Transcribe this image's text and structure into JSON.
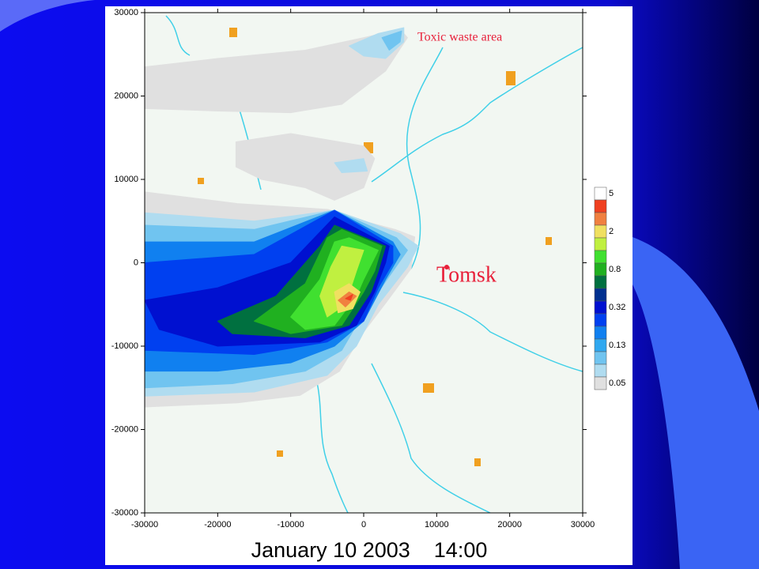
{
  "chart_data": {
    "type": "contour",
    "title": "January 10 2003    14:00",
    "annotations": [
      "Toxic waste area",
      "Tomsk"
    ],
    "xlim": [
      -30000,
      30000
    ],
    "ylim": [
      -30000,
      30000
    ],
    "xticks": [
      -30000,
      -20000,
      -10000,
      0,
      10000,
      20000,
      30000
    ],
    "yticks": [
      -30000,
      -20000,
      -10000,
      0,
      10000,
      20000,
      30000
    ],
    "colorbar": {
      "colors": [
        "#ffffff",
        "#f04020",
        "#f08040",
        "#f0e060",
        "#c0f040",
        "#40e030",
        "#20b020",
        "#007040",
        "#003090",
        "#0010d0",
        "#0040f0",
        "#1080f0",
        "#30a8f0",
        "#70c4f0",
        "#b0dcf0",
        "#e0e0e0"
      ],
      "labels": [
        5,
        null,
        null,
        2,
        null,
        null,
        0.8,
        null,
        null,
        0.32,
        null,
        null,
        0.13,
        null,
        null,
        0.05
      ]
    },
    "contours": [
      {
        "color": "#e0e0e0",
        "x": [
          -30000,
          -20000,
          -8000,
          0,
          5000,
          6000,
          3000,
          -3000,
          -10000,
          -20000,
          -30000
        ],
        "y": [
          23500,
          24500,
          25500,
          27000,
          28000,
          27000,
          23000,
          19000,
          18000,
          18200,
          18500
        ]
      },
      {
        "color": "#b0dcf0",
        "x": [
          -2000,
          2000,
          5500,
          5500,
          3000,
          0
        ],
        "y": [
          26000,
          27500,
          28200,
          26500,
          24500,
          24800
        ]
      },
      {
        "color": "#70c4f0",
        "x": [
          2500,
          5200,
          5000,
          3500
        ],
        "y": [
          27000,
          27800,
          26500,
          25500
        ]
      },
      {
        "color": "#e0e0e0",
        "x": [
          -17500,
          -10000,
          0,
          1500,
          0,
          -4000,
          -8000,
          -14000,
          -17500
        ],
        "y": [
          14500,
          15500,
          14000,
          12500,
          9000,
          7500,
          9000,
          10000,
          11500
        ]
      },
      {
        "color": "#b0dcf0",
        "x": [
          -4000,
          0,
          500,
          -3000
        ],
        "y": [
          12000,
          12500,
          11000,
          10800
        ]
      },
      {
        "color": "#e0e0e0",
        "x": [
          -30000,
          -17300,
          -4900,
          0,
          4300,
          7000,
          6500,
          3300,
          0,
          -3300,
          -8700,
          -17300,
          -30000
        ],
        "y": [
          8500,
          7100,
          6400,
          5000,
          4000,
          3100,
          -700,
          -4500,
          -8300,
          -13000,
          -15900,
          -16800,
          -17300
        ]
      },
      {
        "color": "#b0dcf0",
        "x": [
          -30000,
          -15000,
          -4000,
          5000,
          7500,
          6000,
          2000,
          -1000,
          -5000,
          -15000,
          -30000
        ],
        "y": [
          6000,
          5000,
          6300,
          3500,
          2000,
          -500,
          -5000,
          -10000,
          -13500,
          -15500,
          -16000
        ]
      },
      {
        "color": "#70c4f0",
        "x": [
          -30000,
          -15000,
          -4000,
          4500,
          6000,
          4000,
          0,
          -3000,
          -8000,
          -18000,
          -30000
        ],
        "y": [
          4500,
          4000,
          6300,
          3000,
          1500,
          -1000,
          -6000,
          -10500,
          -13000,
          -14500,
          -15000
        ]
      },
      {
        "color": "#1080f0",
        "x": [
          -30000,
          -15000,
          -4000,
          4000,
          5000,
          3000,
          0,
          -4000,
          -10000,
          -20000,
          -30000
        ],
        "y": [
          2500,
          2500,
          6300,
          2500,
          1000,
          -2000,
          -7000,
          -10000,
          -12000,
          -13000,
          -13000
        ]
      },
      {
        "color": "#0040f0",
        "x": [
          -30000,
          -15000,
          -4000,
          4000,
          4000,
          2000,
          0,
          -5000,
          -15000,
          -30000
        ],
        "y": [
          0,
          1000,
          6300,
          2000,
          0,
          -3000,
          -7000,
          -9500,
          -11000,
          -10500
        ]
      },
      {
        "color": "#0010d0",
        "x": [
          -30000,
          -20000,
          -10000,
          -4000,
          3500,
          3000,
          1500,
          -1000,
          -6000,
          -20000,
          -28000
        ],
        "y": [
          -4500,
          -3000,
          0,
          5500,
          2000,
          0,
          -3500,
          -7500,
          -9500,
          -10000,
          -8000
        ]
      },
      {
        "color": "#007040",
        "x": [
          -20000,
          -12000,
          -6000,
          -4000,
          3000,
          2000,
          1000,
          -2000,
          -8000,
          -18000
        ],
        "y": [
          -7000,
          -4000,
          2000,
          4500,
          2000,
          -1000,
          -3500,
          -7500,
          -9000,
          -8500
        ]
      },
      {
        "color": "#20b020",
        "x": [
          -15000,
          -8000,
          -5000,
          -3000,
          2500,
          1500,
          0,
          -3000,
          -10000
        ],
        "y": [
          -7000,
          -2500,
          3000,
          4000,
          2000,
          -1000,
          -3500,
          -7500,
          -8500
        ]
      },
      {
        "color": "#40e030",
        "x": [
          -10000,
          -6000,
          -4000,
          -2000,
          2000,
          0,
          -1000,
          -4000,
          -8000
        ],
        "y": [
          -6500,
          -2000,
          2500,
          3000,
          1500,
          -2000,
          -4000,
          -7500,
          -8000
        ]
      },
      {
        "color": "#c0f040",
        "x": [
          -6000,
          -4500,
          -3000,
          0,
          -1000,
          -2500,
          -5000
        ],
        "y": [
          -4000,
          -500,
          2000,
          1500,
          -1000,
          -5000,
          -6500
        ]
      },
      {
        "color": "#f0e060",
        "x": [
          -4000,
          -2000,
          -500,
          -1500,
          -3500
        ],
        "y": [
          -3500,
          -2500,
          -3500,
          -5500,
          -6000
        ]
      },
      {
        "color": "#f08040",
        "x": [
          -3500,
          -2000,
          -1000,
          -2500
        ],
        "y": [
          -4500,
          -3500,
          -4000,
          -5300
        ]
      },
      {
        "color": "#f04020",
        "x": [
          -2500,
          -1500,
          -1800
        ],
        "y": [
          -4300,
          -3800,
          -4500
        ]
      }
    ]
  }
}
